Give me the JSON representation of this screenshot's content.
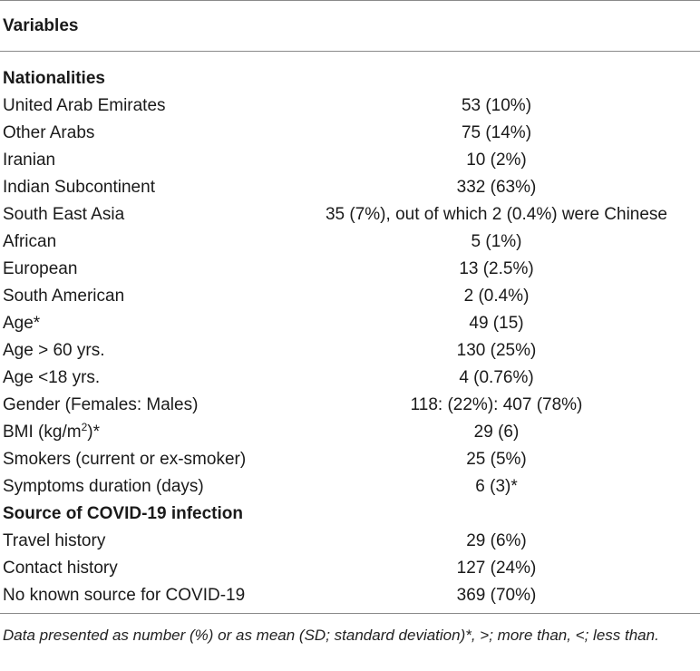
{
  "header": {
    "variables": "Variables"
  },
  "sections": {
    "nationalities": "Nationalities",
    "source": "Source of COVID-19 infection"
  },
  "rows": {
    "uae": {
      "label": "United Arab Emirates",
      "value": "53 (10%)"
    },
    "other_arabs": {
      "label": "Other Arabs",
      "value": "75 (14%)"
    },
    "iranian": {
      "label": "Iranian",
      "value": "10 (2%)"
    },
    "indian_sub": {
      "label": "Indian Subcontinent",
      "value": "332 (63%)"
    },
    "se_asia": {
      "label": "South East Asia",
      "value": "35 (7%), out of which 2 (0.4%) were Chinese"
    },
    "african": {
      "label": "African",
      "value": "5 (1%)"
    },
    "european": {
      "label": "European",
      "value": "13 (2.5%)"
    },
    "south_american": {
      "label": "South American",
      "value": "2 (0.4%)"
    },
    "age": {
      "label": "Age*",
      "value": "49 (15)"
    },
    "age_over_60": {
      "label": "Age > 60 yrs.",
      "value": "130 (25%)"
    },
    "age_under_18": {
      "label": "Age <18 yrs.",
      "value": "4 (0.76%)"
    },
    "gender": {
      "label": "Gender (Females: Males)",
      "value": "118: (22%): 407 (78%)"
    },
    "bmi": {
      "label_pre": "BMI (kg/m",
      "label_sup": "2",
      "label_post": ")*",
      "value": "29 (6)"
    },
    "smokers": {
      "label": "Smokers (current or ex-smoker)",
      "value": "25 (5%)"
    },
    "symptoms": {
      "label": "Symptoms duration (days)",
      "value": "6 (3)*"
    },
    "travel": {
      "label": "Travel history",
      "value": "29 (6%)"
    },
    "contact": {
      "label": "Contact history",
      "value": "127 (24%)"
    },
    "no_source": {
      "label": "No known source for COVID-19",
      "value": "369 (70%)"
    }
  },
  "footnote": "Data presented as number (%) or as mean (SD; standard deviation)*, >; more than, <; less than."
}
